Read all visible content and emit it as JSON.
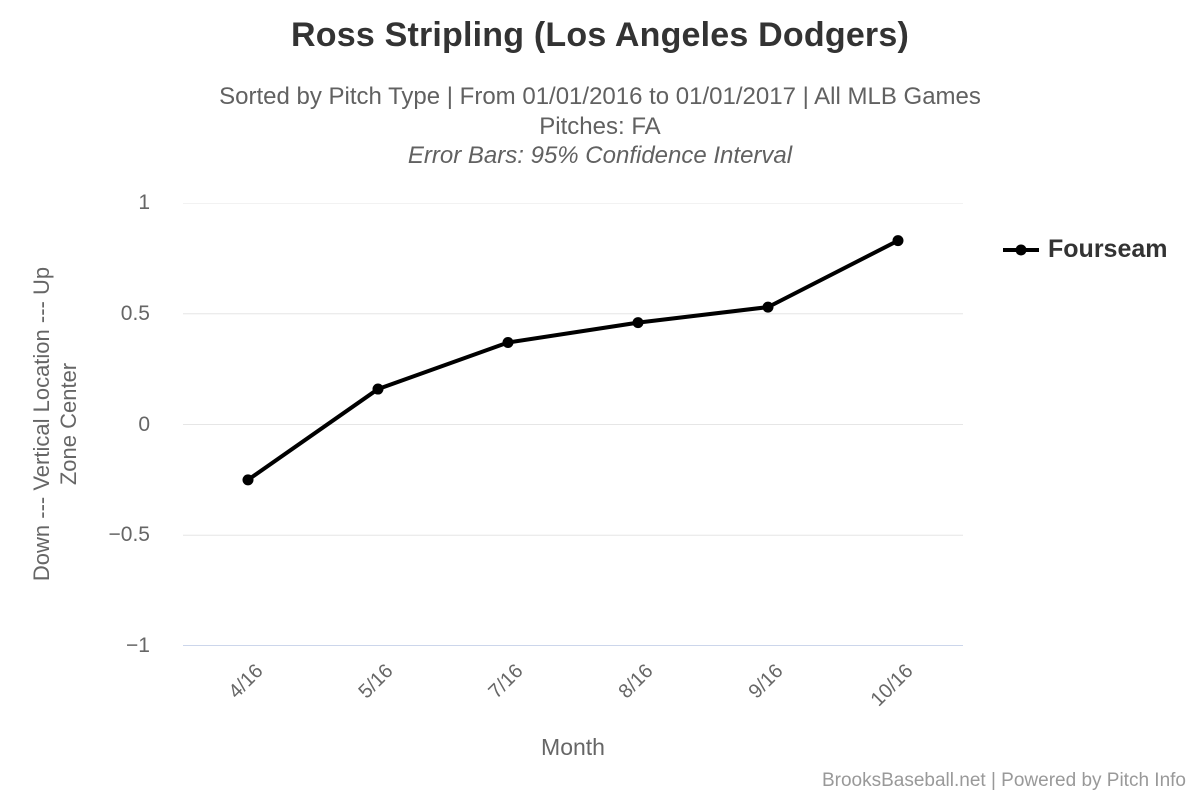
{
  "chart_data": {
    "type": "line",
    "title": "Ross Stripling (Los Angeles Dodgers)",
    "subtitle_lines": [
      "Sorted by Pitch Type | From 01/01/2016 to 01/01/2017 | All MLB Games",
      "Pitches: FA",
      "Error Bars: 95% Confidence Interval"
    ],
    "categories": [
      "4/16",
      "5/16",
      "7/16",
      "8/16",
      "9/16",
      "10/16"
    ],
    "series": [
      {
        "name": "Fourseam",
        "color": "#000000",
        "values": [
          -0.25,
          0.16,
          0.37,
          0.46,
          0.53,
          0.83
        ]
      }
    ],
    "xlabel": "Month",
    "ylabel_lines": [
      "Down --- Vertical Location --- Up",
      "Zone Center"
    ],
    "ylim": [
      -1,
      1
    ],
    "yticks": [
      {
        "value": 1,
        "label": "1"
      },
      {
        "value": 0.5,
        "label": "0.5"
      },
      {
        "value": 0,
        "label": "0"
      },
      {
        "value": -0.5,
        "label": "−0.5"
      },
      {
        "value": -1,
        "label": "−1"
      }
    ],
    "grid": true,
    "legend_position": "right",
    "error_bars_note": "95% Confidence Interval"
  },
  "colors": {
    "series": "#000000",
    "grid_line": "#e6e6e6",
    "axis_line": "#ccd6eb",
    "title_text": "#333333",
    "subtitle_text": "#616161",
    "tick_text": "#666666",
    "credits_text": "#999999"
  },
  "footer": {
    "credits": "BrooksBaseball.net | Powered by Pitch Info"
  }
}
